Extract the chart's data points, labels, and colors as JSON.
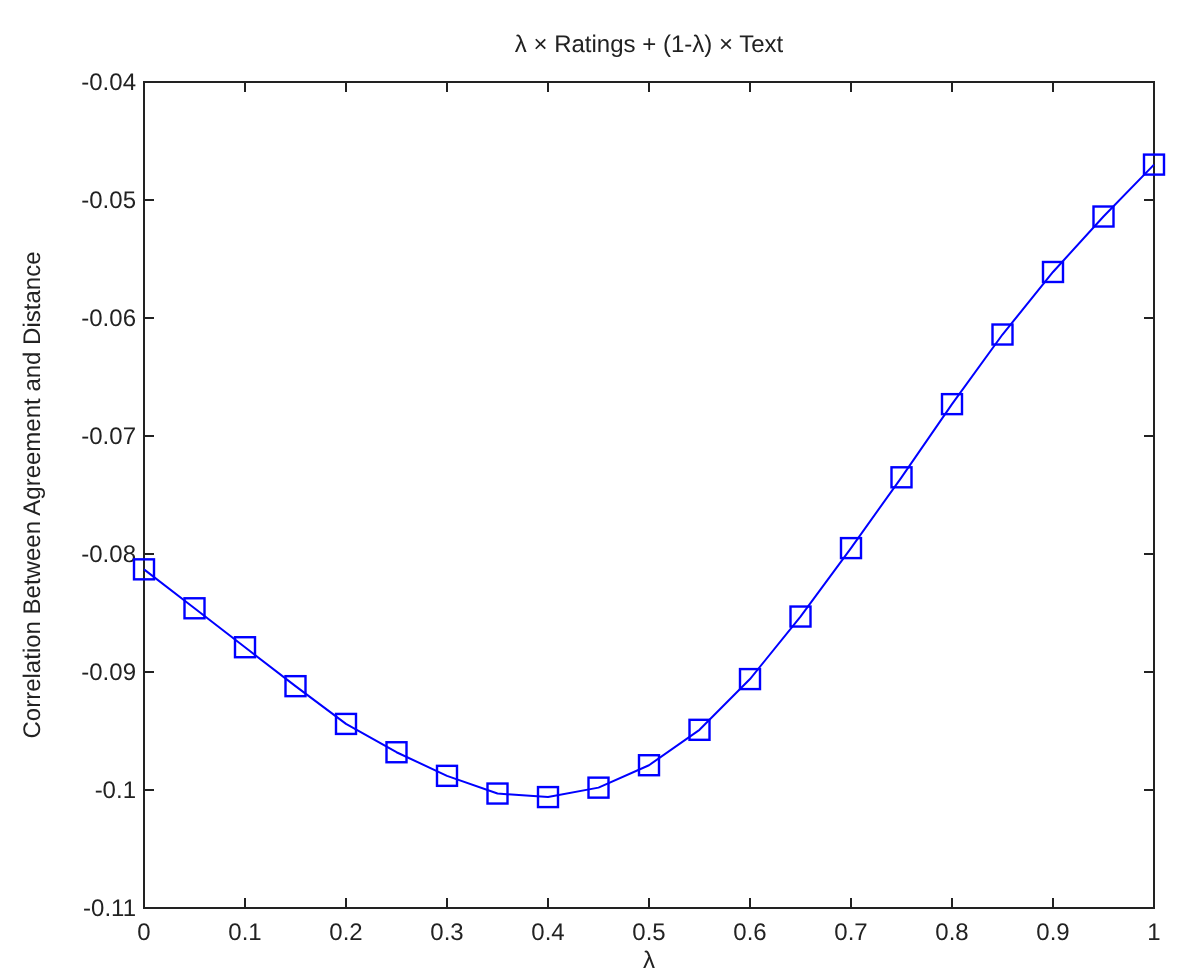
{
  "chart_data": {
    "type": "line",
    "title": "λ × Ratings + (1-λ) × Text",
    "xlabel": "λ",
    "ylabel": "Correlation Between Agreement and Distance",
    "x": [
      0,
      0.05,
      0.1,
      0.15,
      0.2,
      0.25,
      0.3,
      0.35,
      0.4,
      0.45,
      0.5,
      0.55,
      0.6,
      0.65,
      0.7,
      0.75,
      0.8,
      0.85,
      0.9,
      0.95,
      1
    ],
    "series": [
      {
        "color": "#0000ff",
        "values": [
          -0.0813,
          -0.0846,
          -0.0879,
          -0.0912,
          -0.0944,
          -0.0968,
          -0.0988,
          -0.1003,
          -0.1006,
          -0.0998,
          -0.0979,
          -0.0949,
          -0.0906,
          -0.0853,
          -0.0795,
          -0.0735,
          -0.0673,
          -0.0614,
          -0.0561,
          -0.0514,
          -0.047
        ]
      }
    ],
    "xlim": [
      0,
      1
    ],
    "ylim": [
      -0.11,
      -0.04
    ],
    "xticks": [
      0,
      0.1,
      0.2,
      0.3,
      0.4,
      0.5,
      0.6,
      0.7,
      0.8,
      0.9,
      1
    ],
    "yticks": [
      -0.11,
      -0.1,
      -0.09,
      -0.08,
      -0.07,
      -0.06,
      -0.05,
      -0.04
    ],
    "marker": "square",
    "line_style": "solid"
  }
}
